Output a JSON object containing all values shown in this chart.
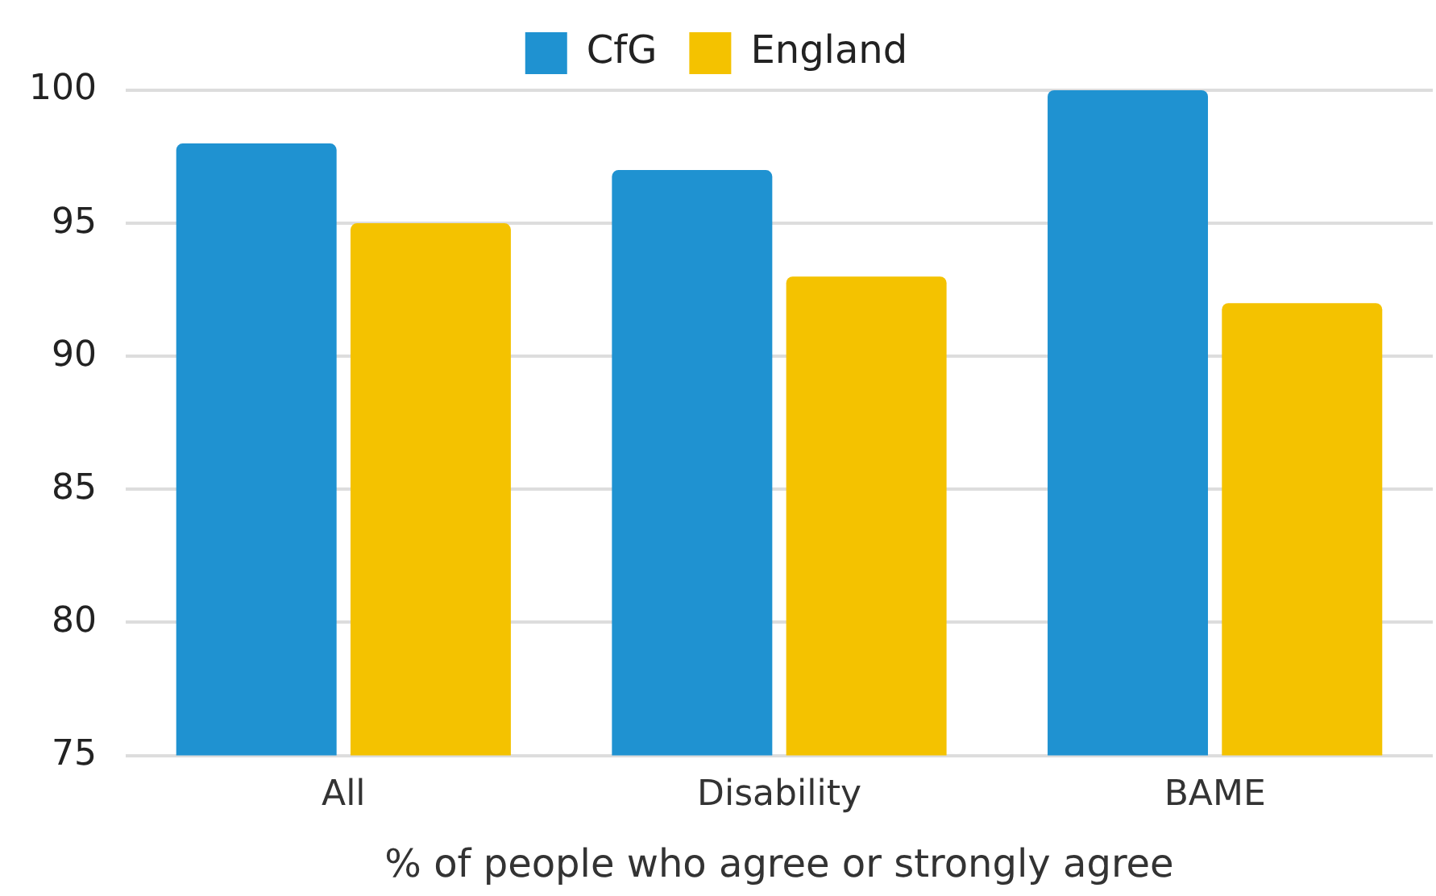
{
  "chart_data": {
    "type": "bar",
    "xlabel": "% of people who agree or strongly agree",
    "categories": [
      "All",
      "Disability",
      "BAME"
    ],
    "series": [
      {
        "name": "CfG",
        "color": "#1f92d1",
        "values": [
          98,
          97,
          100
        ]
      },
      {
        "name": "England",
        "color": "#f4c200",
        "values": [
          95,
          93,
          92
        ]
      }
    ],
    "ylim": [
      75,
      100
    ],
    "yticks": [
      75,
      80,
      85,
      90,
      95,
      100
    ],
    "grid": "y",
    "legend": "top"
  }
}
